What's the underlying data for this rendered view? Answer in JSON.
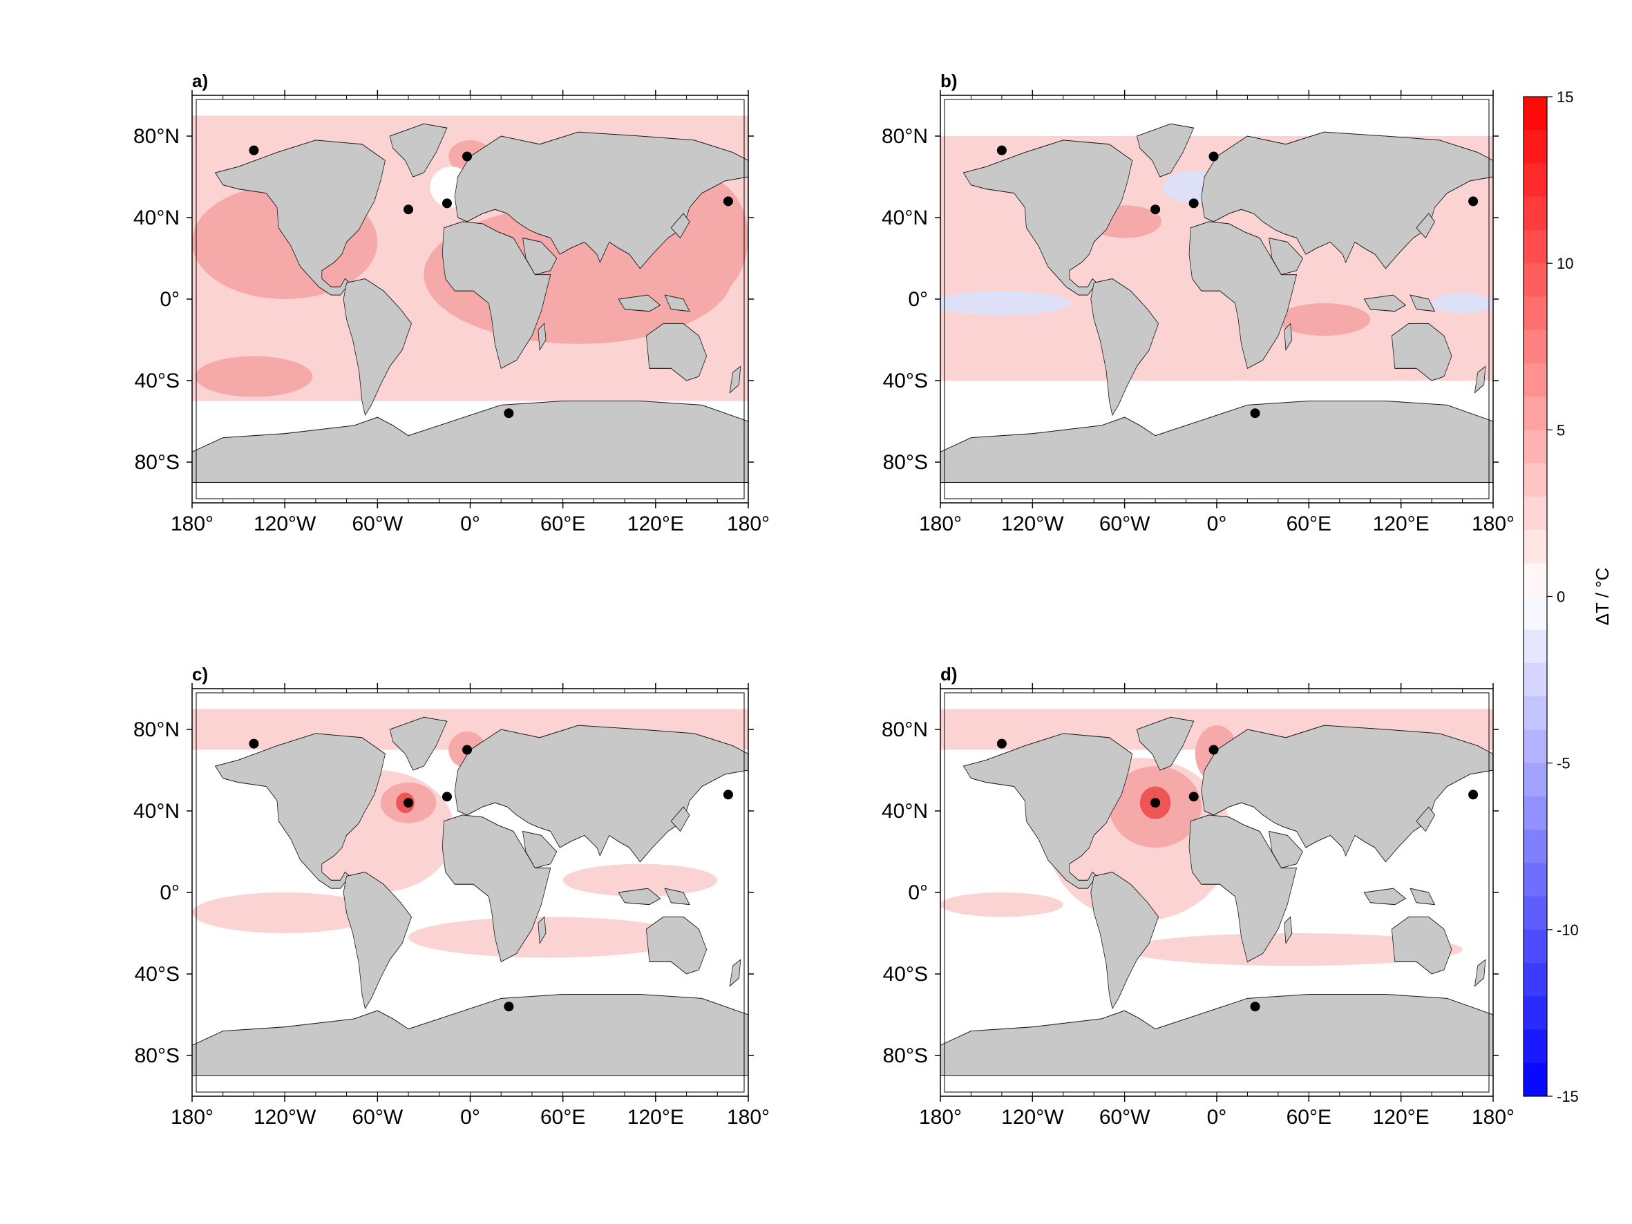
{
  "panels": [
    {
      "label": "a)",
      "type": "anomaly-map",
      "note_pattern": "warm"
    },
    {
      "label": "b)",
      "type": "anomaly-map",
      "note_pattern": "mixed"
    },
    {
      "label": "c)",
      "type": "anomaly-map",
      "note_pattern": "north-atlantic"
    },
    {
      "label": "d)",
      "type": "anomaly-map",
      "note_pattern": "north-atlantic-strong"
    }
  ],
  "axes": {
    "x_ticks": [
      "180°",
      "120°W",
      "60°W",
      "0°",
      "60°E",
      "120°E",
      "180°"
    ],
    "y_ticks": [
      "80°N",
      "40°N",
      "0°",
      "40°S",
      "80°S"
    ],
    "lon_values": [
      -180,
      -120,
      -60,
      0,
      60,
      120,
      180
    ],
    "lat_values": [
      80,
      40,
      0,
      -40,
      -80
    ],
    "lon_range": [
      -180,
      180
    ],
    "lat_range": [
      -100,
      100
    ]
  },
  "sites": [
    {
      "lon": -140,
      "lat": 73
    },
    {
      "lon": -2,
      "lat": 70
    },
    {
      "lon": -40,
      "lat": 44
    },
    {
      "lon": -15,
      "lat": 47
    },
    {
      "lon": 25,
      "lat": -56
    },
    {
      "lon": 167,
      "lat": 48
    }
  ],
  "colorbar": {
    "title": "ΔT / °C",
    "ticks": [
      "15",
      "10",
      "5",
      "0",
      "-5",
      "-10",
      "-15"
    ],
    "tick_values": [
      15,
      10,
      5,
      0,
      -5,
      -10,
      -15
    ],
    "min": -15,
    "max": 15,
    "colors": {
      "max": "#ff0000",
      "mid": "#ffffff",
      "min": "#0000ff"
    }
  },
  "colors": {
    "land": "#c8c8c8",
    "coast": "#1a1a1a",
    "site_marker": "#000000",
    "warm_light": "#fbd3d3",
    "warm_mid": "#f6a9a9",
    "warm_strong": "#ee5555",
    "cool_light": "#dde0f7"
  }
}
